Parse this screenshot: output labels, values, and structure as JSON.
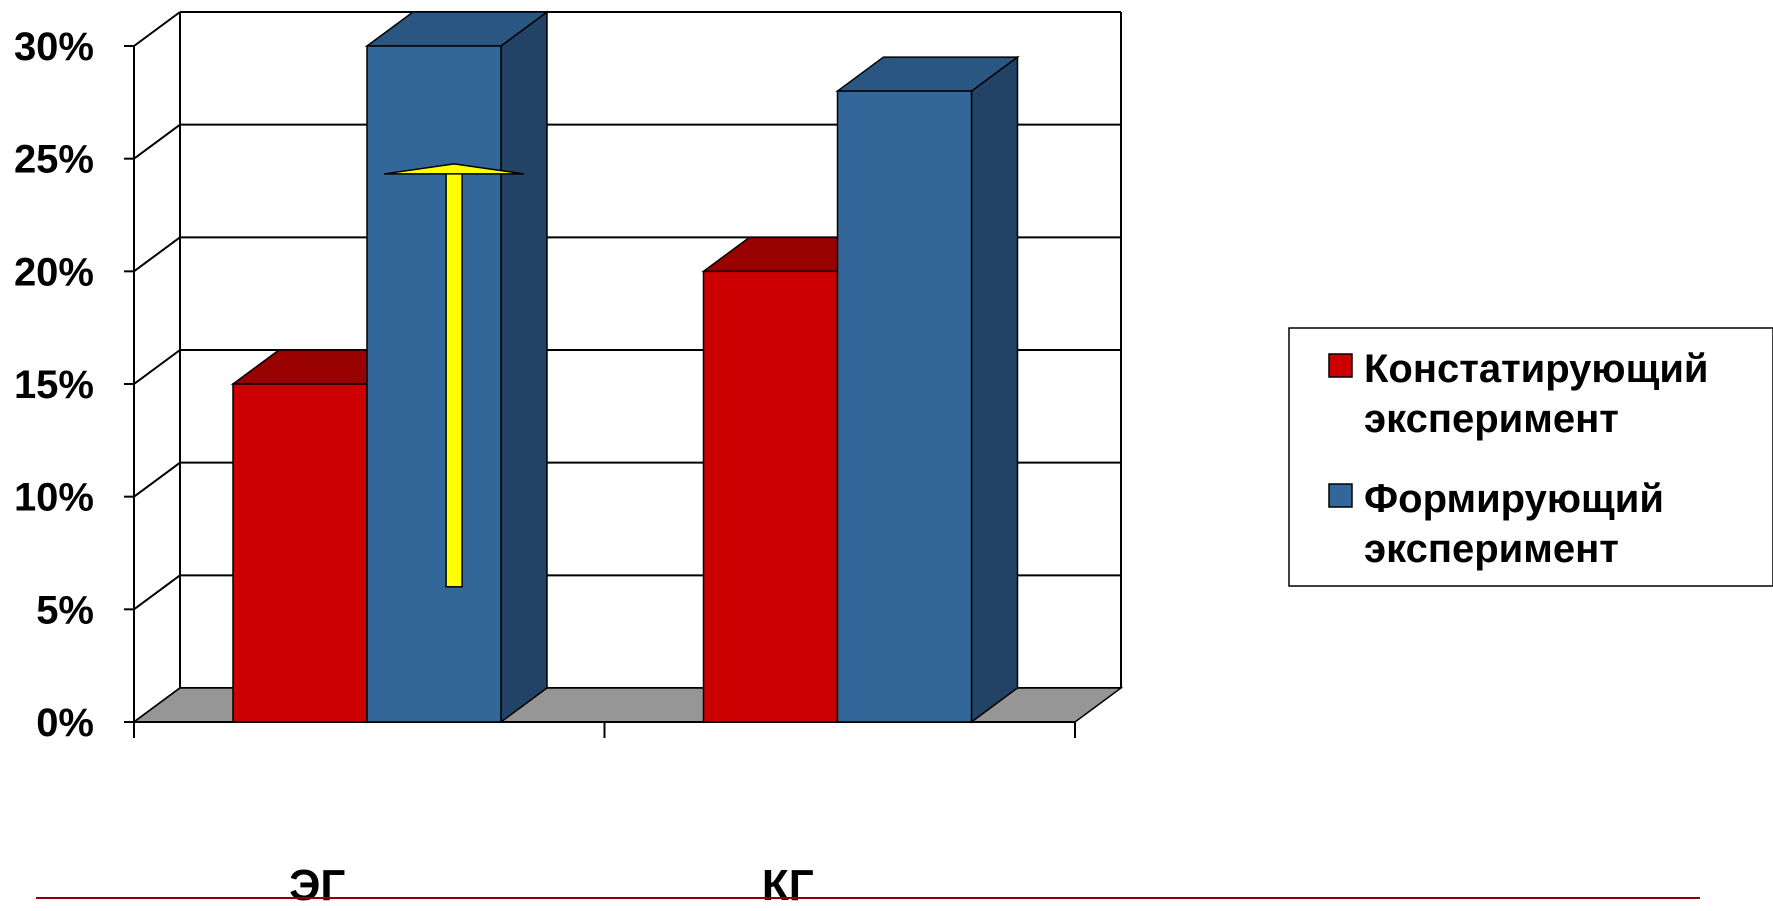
{
  "chart_data": {
    "type": "bar",
    "categories": [
      "ЭГ",
      "КГ"
    ],
    "series": [
      {
        "name": "Констатирующий эксперимент",
        "values": [
          15,
          20
        ],
        "color": "#cc0000",
        "top_color": "#990000",
        "side_color": "#7a0000"
      },
      {
        "name": "Формирующий эксперимент",
        "values": [
          30,
          28
        ],
        "color": "#336699",
        "top_color": "#2a5782",
        "side_color": "#234366"
      }
    ],
    "yticks": [
      "0%",
      "5%",
      "10%",
      "15%",
      "20%",
      "25%",
      "30%"
    ],
    "ylim": [
      0,
      30
    ],
    "grid": true,
    "legend_position": "right",
    "legend_lines": [
      [
        "Констатирующий",
        "эксперимент"
      ],
      [
        "Формирующий",
        "эксперимент"
      ]
    ],
    "annotation": {
      "type": "arrow",
      "color": "#ffff00",
      "series_index": 1,
      "category_index": 0,
      "from": 6,
      "to": 24.5
    },
    "floor_color": "#969696",
    "underline_color": "#8b0000"
  }
}
